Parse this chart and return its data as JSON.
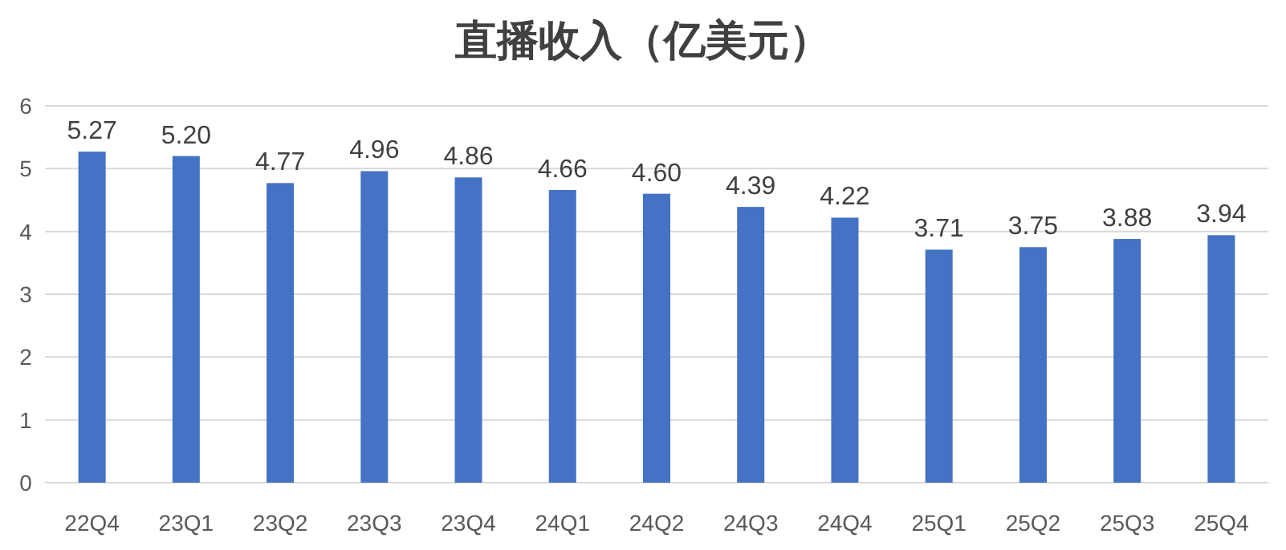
{
  "chart_data": {
    "type": "bar",
    "title": "直播收入（亿美元）",
    "categories": [
      "22Q4",
      "23Q1",
      "23Q2",
      "23Q3",
      "23Q4",
      "24Q1",
      "24Q2",
      "24Q3",
      "24Q4",
      "25Q1",
      "25Q2",
      "25Q3",
      "25Q4"
    ],
    "values": [
      5.27,
      5.2,
      4.77,
      4.96,
      4.86,
      4.66,
      4.6,
      4.39,
      4.22,
      3.71,
      3.75,
      3.88,
      3.94
    ],
    "value_labels": [
      "5.27",
      "5.20",
      "4.77",
      "4.96",
      "4.86",
      "4.66",
      "4.60",
      "4.39",
      "4.22",
      "3.71",
      "3.75",
      "3.88",
      "3.94"
    ],
    "color": "#4472c4",
    "ylim": [
      0,
      6
    ],
    "yticks": [
      0,
      1,
      2,
      3,
      4,
      5,
      6
    ],
    "grid": "y"
  }
}
